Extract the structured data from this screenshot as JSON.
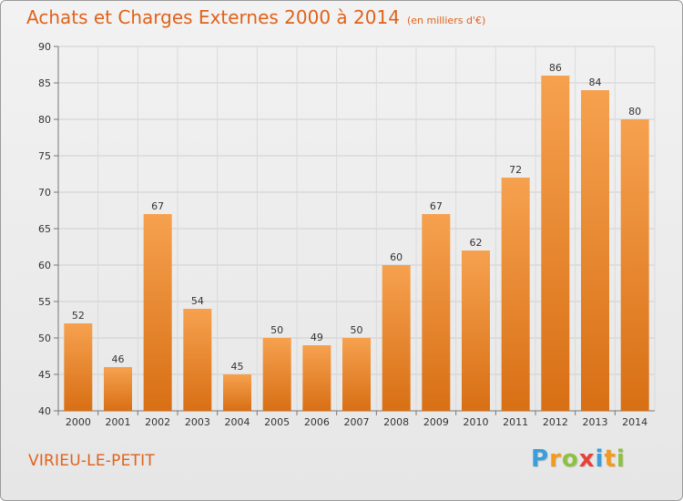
{
  "header": {
    "title": "Achats et Charges Externes 2000 à 2014",
    "subtitle": "(en milliers d'€)"
  },
  "footer": {
    "town": "VIRIEU-LE-PETIT",
    "logo": "Proxiti"
  },
  "chart_data": {
    "type": "bar",
    "title": "Achats et Charges Externes 2000 à 2014",
    "subtitle": "(en milliers d'€)",
    "categories": [
      "2000",
      "2001",
      "2002",
      "2003",
      "2004",
      "2005",
      "2006",
      "2007",
      "2008",
      "2009",
      "2010",
      "2011",
      "2012",
      "2013",
      "2014"
    ],
    "values": [
      52,
      46,
      67,
      54,
      45,
      50,
      49,
      50,
      60,
      67,
      62,
      72,
      86,
      84,
      80
    ],
    "ylim": [
      40,
      90
    ],
    "yticks": [
      40,
      45,
      50,
      55,
      60,
      65,
      70,
      75,
      80,
      85,
      90
    ],
    "grid": true,
    "bar_color_top": "#f6a14f",
    "bar_color_bottom": "#d86f14"
  }
}
